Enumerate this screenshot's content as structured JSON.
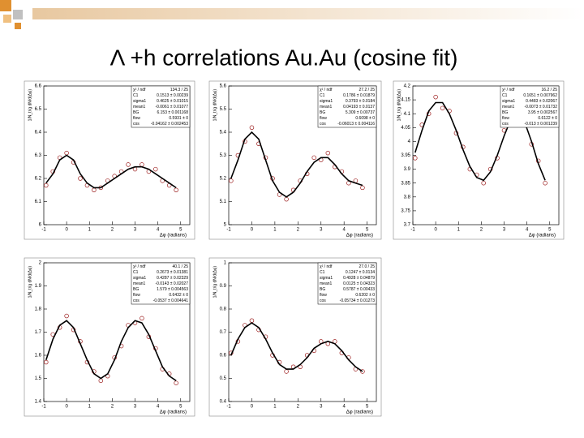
{
  "title": "Λ +h correlations Au.Au (cosine fit)",
  "chart_data": [
    {
      "type": "scatter",
      "x_label": "Δφ (radians)",
      "y_label": "1/N_trig dN/d(Δφ)",
      "xlim": [
        -1,
        5.4
      ],
      "xticks": [
        -1,
        0,
        1,
        2,
        3,
        4,
        5
      ],
      "ylim": [
        6.0,
        6.6
      ],
      "yticks": [
        6.0,
        6.1,
        6.2,
        6.3,
        6.4,
        6.5,
        6.6
      ],
      "stats": [
        [
          "χ² / ndf",
          "134.3 / 25"
        ],
        [
          "C1",
          "0.1513 ± 0.00239"
        ],
        [
          "sigma1",
          "0.4625 ± 0.01015"
        ],
        [
          "mean1",
          "-0.0061 ± 0.01077"
        ],
        [
          "BG",
          "6.153 ± 0.001168"
        ],
        [
          "flow",
          "0.5931 ± 0"
        ],
        [
          "cos",
          "-0.04162 ± 0.002453"
        ]
      ],
      "x": [
        -0.9,
        -0.6,
        -0.3,
        0,
        0.3,
        0.6,
        0.9,
        1.2,
        1.5,
        1.8,
        2.1,
        2.4,
        2.7,
        3.0,
        3.3,
        3.6,
        3.9,
        4.2,
        4.5,
        4.8
      ],
      "series": [
        {
          "mode": "markers",
          "color": "#9b1b1b",
          "values": [
            6.17,
            6.23,
            6.29,
            6.31,
            6.27,
            6.2,
            6.17,
            6.15,
            6.16,
            6.19,
            6.21,
            6.23,
            6.26,
            6.24,
            6.26,
            6.23,
            6.24,
            6.19,
            6.17,
            6.15
          ]
        },
        {
          "mode": "line",
          "color": "#000000",
          "values": [
            6.18,
            6.22,
            6.28,
            6.3,
            6.28,
            6.22,
            6.18,
            6.16,
            6.16,
            6.18,
            6.2,
            6.22,
            6.24,
            6.25,
            6.25,
            6.24,
            6.22,
            6.2,
            6.18,
            6.16
          ]
        }
      ]
    },
    {
      "type": "scatter",
      "x_label": "Δφ (radians)",
      "y_label": "1/N_trig dN/d(Δφ)",
      "xlim": [
        -1,
        5.4
      ],
      "xticks": [
        -1,
        0,
        1,
        2,
        3,
        4,
        5
      ],
      "ylim": [
        5.0,
        5.6
      ],
      "yticks": [
        5.0,
        5.1,
        5.2,
        5.3,
        5.4,
        5.5,
        5.6
      ],
      "stats": [
        [
          "χ² / ndf",
          "27.2 / 25"
        ],
        [
          "C1",
          "0.1786 ± 0.01879"
        ],
        [
          "sigma1",
          "0.3793 ± 0.0184"
        ],
        [
          "mean1",
          "0.04193 ± 0.0137"
        ],
        [
          "BG",
          "5.309 ± 0.00737"
        ],
        [
          "flow",
          "0.6098 ± 0"
        ],
        [
          "cos",
          "-0.06013 ± 0.004116"
        ]
      ],
      "x": [
        -0.9,
        -0.6,
        -0.3,
        0,
        0.3,
        0.6,
        0.9,
        1.2,
        1.5,
        1.8,
        2.1,
        2.4,
        2.7,
        3.0,
        3.3,
        3.6,
        3.9,
        4.2,
        4.5,
        4.8
      ],
      "series": [
        {
          "mode": "markers",
          "color": "#9b1b1b",
          "values": [
            5.19,
            5.3,
            5.36,
            5.42,
            5.35,
            5.29,
            5.2,
            5.13,
            5.11,
            5.15,
            5.19,
            5.22,
            5.29,
            5.28,
            5.31,
            5.25,
            5.23,
            5.18,
            5.19,
            5.16
          ]
        },
        {
          "mode": "line",
          "color": "#000000",
          "values": [
            5.2,
            5.28,
            5.37,
            5.4,
            5.37,
            5.28,
            5.19,
            5.14,
            5.12,
            5.14,
            5.18,
            5.23,
            5.27,
            5.29,
            5.29,
            5.26,
            5.22,
            5.19,
            5.18,
            5.17
          ]
        }
      ]
    },
    {
      "type": "scatter",
      "x_label": "Δφ (radians)",
      "y_label": "1/N_trig dN/d(Δφ)",
      "xlim": [
        -1,
        5.4
      ],
      "xticks": [
        -1,
        0,
        1,
        2,
        3,
        4,
        5
      ],
      "ylim": [
        3.7,
        4.2
      ],
      "yticks": [
        3.7,
        3.75,
        3.8,
        3.85,
        3.9,
        3.95,
        4.0,
        4.05,
        4.1,
        4.15,
        4.2
      ],
      "stats": [
        [
          "χ² / ndf",
          "16.2 / 25"
        ],
        [
          "C1",
          "0.1651 ± 0.007962"
        ],
        [
          "sigma1",
          "0.4483 ± 0.02067"
        ],
        [
          "mean1",
          "-0.0073 ± 0.01732"
        ],
        [
          "BG",
          "3.95 ± 0.002567"
        ],
        [
          "flow",
          "0.6122 ± 0"
        ],
        [
          "cos",
          "-0.013 ± 0.001239"
        ]
      ],
      "x": [
        -0.9,
        -0.6,
        -0.3,
        0,
        0.3,
        0.6,
        0.9,
        1.2,
        1.5,
        1.8,
        2.1,
        2.4,
        2.7,
        3.0,
        3.3,
        3.6,
        3.9,
        4.2,
        4.5,
        4.8
      ],
      "series": [
        {
          "mode": "markers",
          "color": "#9b1b1b",
          "values": [
            3.94,
            4.06,
            4.1,
            4.16,
            4.12,
            4.11,
            4.03,
            3.98,
            3.9,
            3.88,
            3.85,
            3.9,
            3.94,
            4.04,
            4.07,
            4.11,
            4.06,
            3.99,
            3.93,
            3.85
          ]
        },
        {
          "mode": "line",
          "color": "#000000",
          "values": [
            3.96,
            4.04,
            4.11,
            4.14,
            4.14,
            4.1,
            4.04,
            3.97,
            3.91,
            3.87,
            3.86,
            3.89,
            3.95,
            4.02,
            4.08,
            4.1,
            4.07,
            4.0,
            3.92,
            3.86
          ]
        }
      ]
    },
    {
      "type": "scatter",
      "x_label": "Δφ (radians)",
      "y_label": "1/N_trig dN/d(Δφ)",
      "xlim": [
        -1,
        5.4
      ],
      "xticks": [
        -1,
        0,
        1,
        2,
        3,
        4,
        5
      ],
      "ylim": [
        1.4,
        2.0
      ],
      "yticks": [
        1.4,
        1.5,
        1.6,
        1.7,
        1.8,
        1.9,
        2.0
      ],
      "stats": [
        [
          "χ² / ndf",
          "40.1 / 25"
        ],
        [
          "C1",
          "0.2673 ± 0.01381"
        ],
        [
          "sigma1",
          "0.4287 ± 0.02329"
        ],
        [
          "mean1",
          "-0.0143 ± 0.02027"
        ],
        [
          "BG",
          "1.579 ± 0.004563"
        ],
        [
          "flow",
          "0.6432 ± 0"
        ],
        [
          "cos",
          "-0.0537 ± 0.004641"
        ]
      ],
      "x": [
        -0.9,
        -0.6,
        -0.3,
        0,
        0.3,
        0.6,
        0.9,
        1.2,
        1.5,
        1.8,
        2.1,
        2.4,
        2.7,
        3.0,
        3.3,
        3.6,
        3.9,
        4.2,
        4.5,
        4.8
      ],
      "series": [
        {
          "mode": "markers",
          "color": "#9b1b1b",
          "values": [
            1.57,
            1.69,
            1.72,
            1.77,
            1.71,
            1.66,
            1.57,
            1.53,
            1.49,
            1.51,
            1.59,
            1.64,
            1.73,
            1.74,
            1.76,
            1.68,
            1.63,
            1.54,
            1.52,
            1.48
          ]
        },
        {
          "mode": "line",
          "color": "#000000",
          "values": [
            1.58,
            1.67,
            1.73,
            1.75,
            1.72,
            1.65,
            1.58,
            1.52,
            1.5,
            1.52,
            1.58,
            1.66,
            1.72,
            1.75,
            1.74,
            1.69,
            1.62,
            1.55,
            1.51,
            1.49
          ]
        }
      ]
    },
    {
      "type": "scatter",
      "x_label": "Δφ (radians)",
      "y_label": "1/N_trig dN/d(Δφ)",
      "xlim": [
        -1,
        5.4
      ],
      "xticks": [
        -1,
        0,
        1,
        2,
        3,
        4,
        5
      ],
      "ylim": [
        0.4,
        1.0
      ],
      "yticks": [
        0.4,
        0.5,
        0.6,
        0.7,
        0.8,
        0.9,
        1.0
      ],
      "stats": [
        [
          "χ² / ndf",
          "27.0 / 25"
        ],
        [
          "C1",
          "0.1247 ± 0.0134"
        ],
        [
          "sigma1",
          "0.4928 ± 0.04879"
        ],
        [
          "mean1",
          "0.0125 ± 0.04323"
        ],
        [
          "BG",
          "0.5787 ± 0.00433"
        ],
        [
          "flow",
          "0.6202 ± 0"
        ],
        [
          "cos",
          "-0.05734 ± 0.01273"
        ]
      ],
      "x": [
        -0.9,
        -0.6,
        -0.3,
        0,
        0.3,
        0.6,
        0.9,
        1.2,
        1.5,
        1.8,
        2.1,
        2.4,
        2.7,
        3.0,
        3.3,
        3.6,
        3.9,
        4.2,
        4.5,
        4.8
      ],
      "series": [
        {
          "mode": "markers",
          "color": "#9b1b1b",
          "values": [
            0.61,
            0.66,
            0.73,
            0.75,
            0.71,
            0.68,
            0.6,
            0.57,
            0.53,
            0.55,
            0.55,
            0.6,
            0.62,
            0.66,
            0.65,
            0.66,
            0.61,
            0.59,
            0.54,
            0.53
          ]
        },
        {
          "mode": "line",
          "color": "#000000",
          "values": [
            0.6,
            0.67,
            0.72,
            0.74,
            0.72,
            0.67,
            0.61,
            0.56,
            0.54,
            0.54,
            0.56,
            0.59,
            0.63,
            0.65,
            0.66,
            0.65,
            0.62,
            0.58,
            0.55,
            0.53
          ]
        }
      ]
    }
  ]
}
